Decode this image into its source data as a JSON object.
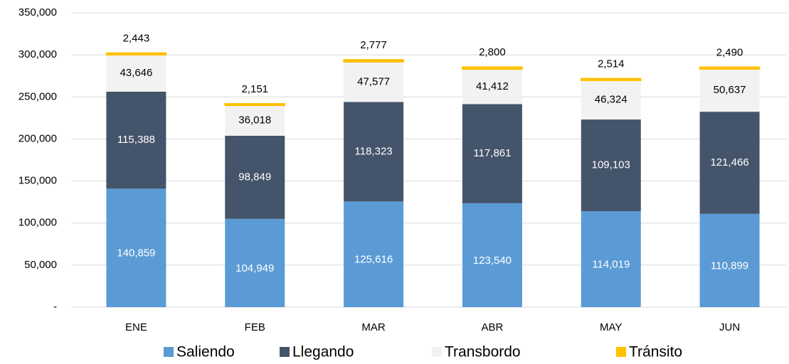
{
  "chart_data": {
    "type": "stacked_bar",
    "categories": [
      "ENE",
      "FEB",
      "MAR",
      "ABR",
      "MAY",
      "JUN"
    ],
    "series": [
      {
        "name": "Saliendo",
        "color": "#5b9bd5",
        "values": [
          140859,
          104949,
          125616,
          123540,
          114019,
          110899
        ],
        "value_labels": [
          "140,859",
          "104,949",
          "125,616",
          "123,540",
          "114,019",
          "110,899"
        ]
      },
      {
        "name": "Llegando",
        "color": "#44546a",
        "values": [
          115388,
          98849,
          118323,
          117861,
          109103,
          121466
        ],
        "value_labels": [
          "115,388",
          "98,849",
          "118,323",
          "117,861",
          "109,103",
          "121,466"
        ]
      },
      {
        "name": "Transbordo",
        "color": "#f2f2f2",
        "values": [
          43646,
          36018,
          47577,
          41412,
          46324,
          50637
        ],
        "value_labels": [
          "43,646",
          "36,018",
          "47,577",
          "41,412",
          "46,324",
          "50,637"
        ]
      },
      {
        "name": "Tránsito",
        "color": "#ffc000",
        "values": [
          2443,
          2151,
          2777,
          2800,
          2514,
          2490
        ],
        "value_labels": [
          "2,443",
          "2,151",
          "2,777",
          "2,800",
          "2,514",
          "2,490"
        ]
      }
    ],
    "ylim": [
      0,
      350000
    ],
    "yticks": [
      {
        "value": 0,
        "label": "-"
      },
      {
        "value": 50000,
        "label": "50,000"
      },
      {
        "value": 100000,
        "label": "100,000"
      },
      {
        "value": 150000,
        "label": "150,000"
      },
      {
        "value": 200000,
        "label": "200,000"
      },
      {
        "value": 250000,
        "label": "250,000"
      },
      {
        "value": 300000,
        "label": "300,000"
      },
      {
        "value": 350000,
        "label": "350,000"
      }
    ],
    "grid": true,
    "legend": "bottom"
  }
}
